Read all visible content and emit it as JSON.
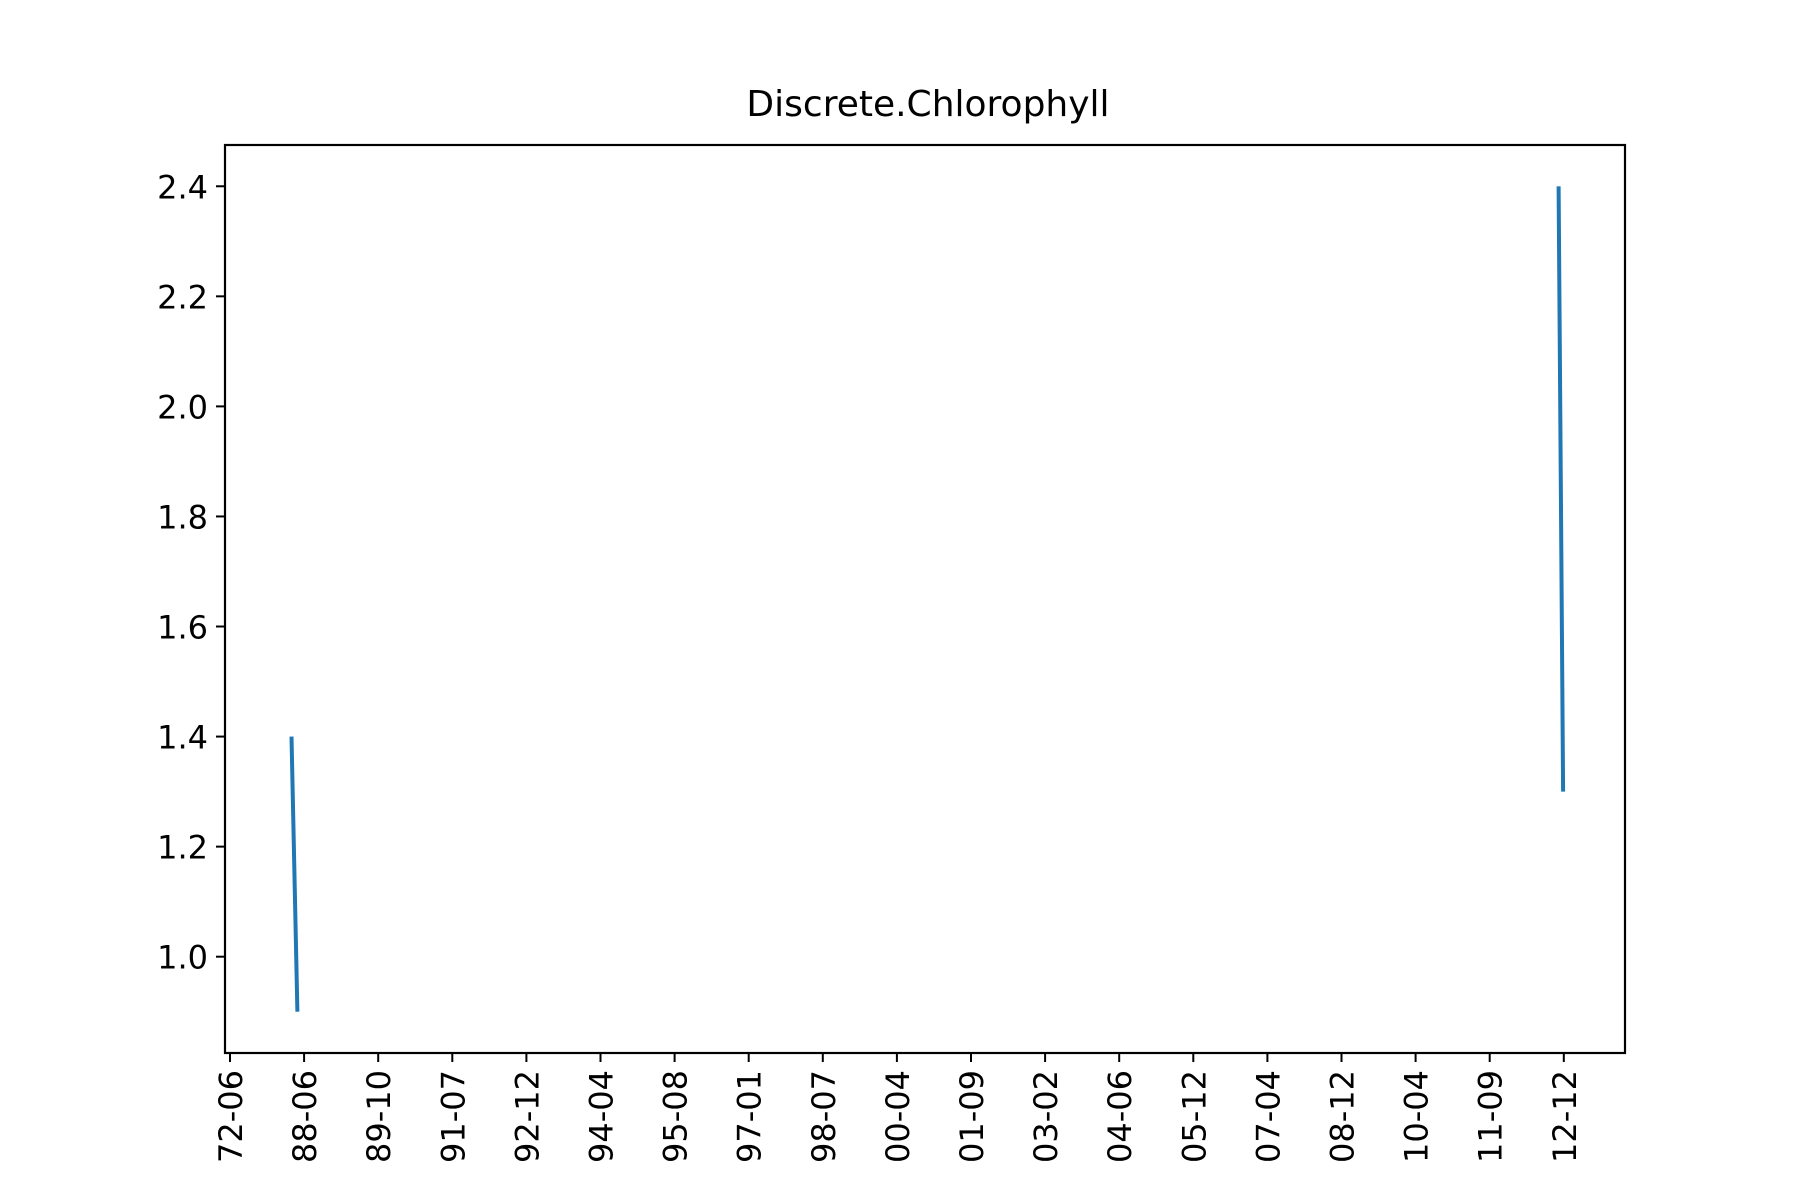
{
  "chart_data": {
    "type": "line",
    "title": "Discrete.Chlorophyll",
    "xlabel": "",
    "ylabel": "",
    "x_ticks": [
      "72-06",
      "88-06",
      "89-10",
      "91-07",
      "92-12",
      "94-04",
      "95-08",
      "97-01",
      "98-07",
      "00-04",
      "01-09",
      "03-02",
      "04-06",
      "05-12",
      "07-04",
      "08-12",
      "10-04",
      "11-09",
      "12-12"
    ],
    "y_ticks": [
      "1.0",
      "1.2",
      "1.4",
      "1.6",
      "1.8",
      "2.0",
      "2.2",
      "2.4"
    ],
    "ylim": [
      0.825,
      2.475
    ],
    "grid": false,
    "series": [
      {
        "segments": [
          [
            {
              "x_tick": 0.83,
              "y": 1.4
            },
            {
              "x_tick": 0.91,
              "y": 0.9
            }
          ],
          [
            {
              "x_tick": 17.93,
              "y": 2.4
            },
            {
              "x_tick": 17.99,
              "y": 1.3
            }
          ]
        ]
      }
    ],
    "colors": {
      "line": "#1f77b4",
      "axes": "#000000",
      "background": "#ffffff"
    }
  }
}
